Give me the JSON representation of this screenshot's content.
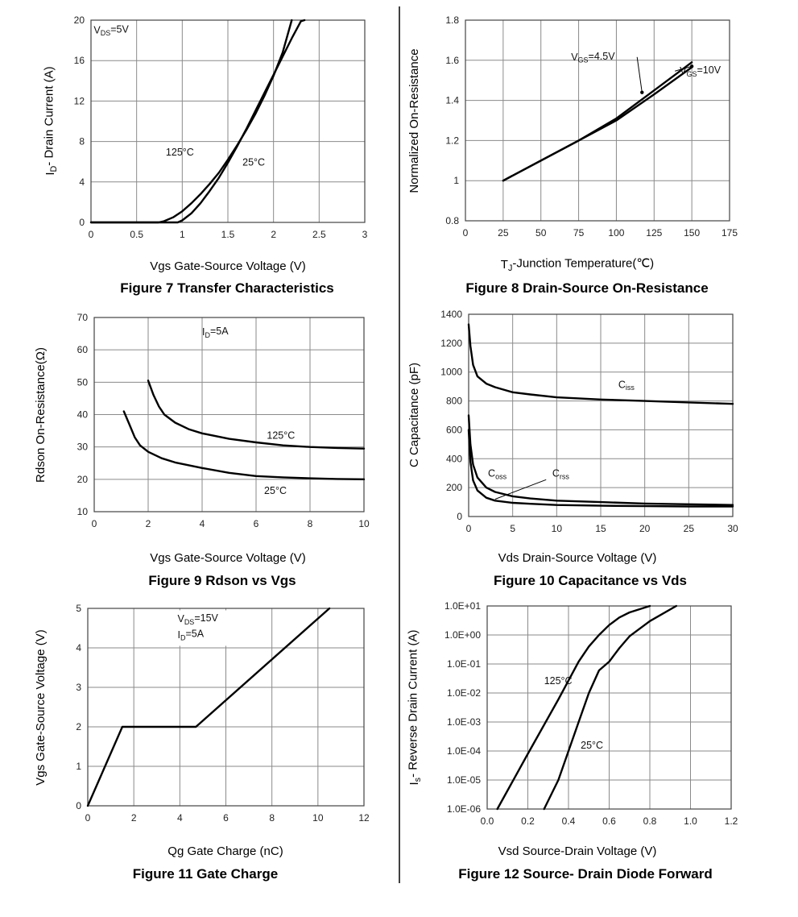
{
  "chart_data": [
    {
      "id": "fig7",
      "type": "line",
      "title": "Figure 7 Transfer Characteristics",
      "xlabel": "Vgs Gate-Source Voltage (V)",
      "ylabel": "I_D- Drain Current (A)",
      "xlim": [
        0,
        3
      ],
      "ylim": [
        0,
        20
      ],
      "xticks": [
        "0",
        "0.5",
        "1",
        "1.5",
        "2",
        "2.5",
        "3"
      ],
      "yticks": [
        "0",
        "4",
        "8",
        "12",
        "16",
        "20"
      ],
      "grid": true,
      "annotations": [
        {
          "text": "V_DS=5V"
        }
      ],
      "series": [
        {
          "name": "125°C",
          "x": [
            0,
            0.74,
            0.8,
            0.9,
            1.0,
            1.1,
            1.2,
            1.3,
            1.4,
            1.5,
            1.6,
            1.7,
            1.8,
            1.9,
            2.0,
            2.1,
            2.2
          ],
          "y": [
            0,
            0,
            0.12,
            0.5,
            1.1,
            1.9,
            2.8,
            3.8,
            4.9,
            6.2,
            7.6,
            9.1,
            10.7,
            12.5,
            14.5,
            16.8,
            20
          ]
        },
        {
          "name": "25°C",
          "x": [
            0,
            0.95,
            1.0,
            1.1,
            1.2,
            1.3,
            1.4,
            1.5,
            1.6,
            1.7,
            1.8,
            1.9,
            2.0,
            2.1,
            2.2,
            2.3,
            2.34
          ],
          "y": [
            0,
            0,
            0.2,
            0.9,
            1.9,
            3.1,
            4.4,
            5.9,
            7.5,
            9.2,
            11.0,
            12.8,
            14.6,
            16.4,
            18.2,
            19.9,
            20
          ]
        }
      ]
    },
    {
      "id": "fig8",
      "type": "line",
      "title": "Figure 8 Drain-Source On-Resistance",
      "xlabel": "T_J-Junction Temperature(℃)",
      "ylabel": "Normalized On-Resistance",
      "xlim": [
        0,
        175
      ],
      "ylim": [
        0.8,
        1.8
      ],
      "xticks": [
        "0",
        "25",
        "50",
        "75",
        "100",
        "125",
        "150",
        "175"
      ],
      "yticks": [
        "0.8",
        "1",
        "1.2",
        "1.4",
        "1.6",
        "1.8"
      ],
      "grid": true,
      "series": [
        {
          "name": "V_GS=4.5V",
          "x": [
            25,
            50,
            75,
            100,
            125,
            150
          ],
          "y": [
            1.0,
            1.1,
            1.2,
            1.31,
            1.45,
            1.59
          ]
        },
        {
          "name": "V_GS=10V",
          "x": [
            25,
            50,
            75,
            100,
            125,
            150
          ],
          "y": [
            1.0,
            1.1,
            1.2,
            1.3,
            1.43,
            1.565
          ]
        }
      ]
    },
    {
      "id": "fig9",
      "type": "line",
      "title": "Figure 9 Rdson vs Vgs",
      "xlabel": "Vgs Gate-Source Voltage (V)",
      "ylabel": "Rdson On-Resistance(Ω)",
      "xlim": [
        0,
        10
      ],
      "ylim": [
        10,
        70
      ],
      "xticks": [
        "0",
        "2",
        "4",
        "6",
        "8",
        "10"
      ],
      "yticks": [
        "10",
        "20",
        "30",
        "40",
        "50",
        "60",
        "70"
      ],
      "grid": true,
      "annotations": [
        {
          "text": "I_D=5A"
        }
      ],
      "series": [
        {
          "name": "125°C",
          "x": [
            2.0,
            2.2,
            2.4,
            2.6,
            3.0,
            3.5,
            4.0,
            5.0,
            6.0,
            7.0,
            8.0,
            9.0,
            10.0
          ],
          "y": [
            50.5,
            46.0,
            42.5,
            40.0,
            37.5,
            35.5,
            34.2,
            32.5,
            31.4,
            30.5,
            30.0,
            29.7,
            29.5
          ]
        },
        {
          "name": "25°C",
          "x": [
            1.1,
            1.3,
            1.5,
            1.7,
            2.0,
            2.5,
            3.0,
            4.0,
            5.0,
            6.0,
            7.0,
            8.0,
            9.0,
            10.0
          ],
          "y": [
            41.0,
            37.0,
            33.0,
            30.5,
            28.5,
            26.5,
            25.2,
            23.5,
            22.0,
            21.0,
            20.6,
            20.3,
            20.1,
            20.0
          ]
        }
      ]
    },
    {
      "id": "fig10",
      "type": "line",
      "title": "Figure 10 Capacitance vs Vds",
      "xlabel": "Vds Drain-Source Voltage (V)",
      "ylabel": "C Capacitance (pF)",
      "xlim": [
        0,
        30
      ],
      "ylim": [
        0,
        1400
      ],
      "xticks": [
        "0",
        "5",
        "10",
        "15",
        "20",
        "25",
        "30"
      ],
      "yticks": [
        "0",
        "200",
        "400",
        "600",
        "800",
        "1000",
        "1200",
        "1400"
      ],
      "grid": true,
      "series": [
        {
          "name": "C_iss",
          "x": [
            0,
            0.2,
            0.5,
            1,
            2,
            3,
            5,
            7,
            10,
            15,
            20,
            25,
            30
          ],
          "y": [
            1330,
            1180,
            1050,
            970,
            920,
            895,
            860,
            845,
            825,
            810,
            800,
            790,
            780
          ]
        },
        {
          "name": "C_oss",
          "x": [
            0,
            0.2,
            0.5,
            1,
            2,
            3,
            5,
            7,
            10,
            15,
            20,
            25,
            30
          ],
          "y": [
            700,
            500,
            360,
            270,
            200,
            170,
            140,
            125,
            110,
            100,
            90,
            85,
            80
          ]
        },
        {
          "name": "C_rss",
          "x": [
            0,
            0.2,
            0.5,
            1,
            2,
            3,
            5,
            7,
            10,
            15,
            20,
            25,
            30
          ],
          "y": [
            600,
            380,
            250,
            180,
            130,
            110,
            95,
            88,
            80,
            75,
            72,
            70,
            70
          ]
        }
      ],
      "annotations": [
        {
          "text": "C_iss"
        },
        {
          "text": "C_oss"
        },
        {
          "text": "C_rss"
        }
      ]
    },
    {
      "id": "fig11",
      "type": "line",
      "title": "Figure 11 Gate Charge",
      "xlabel": "Qg Gate Charge (nC)",
      "ylabel": "Vgs Gate-Source Voltage (V)",
      "xlim": [
        0,
        12
      ],
      "ylim": [
        0,
        5
      ],
      "xticks": [
        "0",
        "2",
        "4",
        "6",
        "8",
        "10",
        "12"
      ],
      "yticks": [
        "0",
        "1",
        "2",
        "3",
        "4",
        "5"
      ],
      "grid": true,
      "annotations": [
        {
          "text": "V_DS=15V"
        },
        {
          "text": "I_D=5A"
        }
      ],
      "series": [
        {
          "name": "",
          "x": [
            0,
            1.5,
            4.7,
            10.5
          ],
          "y": [
            0,
            2.0,
            2.0,
            5.0
          ]
        }
      ]
    },
    {
      "id": "fig12",
      "type": "line",
      "title": "Figure 12 Source- Drain Diode Forward",
      "xlabel": "Vsd Source-Drain Voltage (V)",
      "ylabel": "I_s- Reverse Drain Current (A)",
      "xlim": [
        0,
        1.2
      ],
      "ylim": [
        1e-06,
        10
      ],
      "yscale": "log",
      "xticks": [
        "0.0",
        "0.2",
        "0.4",
        "0.6",
        "0.8",
        "1.0",
        "1.2"
      ],
      "yticks": [
        "1.0E-06",
        "1.0E-05",
        "1.0E-04",
        "1.0E-03",
        "1.0E-02",
        "1.0E-01",
        "1.0E+00",
        "1.0E+01"
      ],
      "grid": true,
      "series": [
        {
          "name": "125°C",
          "x": [
            0.05,
            0.2,
            0.35,
            0.45,
            0.5,
            0.55,
            0.6,
            0.65,
            0.7,
            0.8
          ],
          "y": [
            1e-06,
            8e-05,
            0.006,
            0.12,
            0.4,
            1.0,
            2.2,
            4.0,
            6.0,
            10
          ]
        },
        {
          "name": "25°C",
          "x": [
            0.28,
            0.35,
            0.4,
            0.45,
            0.5,
            0.55,
            0.6,
            0.65,
            0.7,
            0.8,
            0.93
          ],
          "y": [
            1e-06,
            1e-05,
            0.0001,
            0.001,
            0.01,
            0.06,
            0.12,
            0.35,
            0.9,
            3.0,
            10
          ]
        }
      ]
    }
  ]
}
